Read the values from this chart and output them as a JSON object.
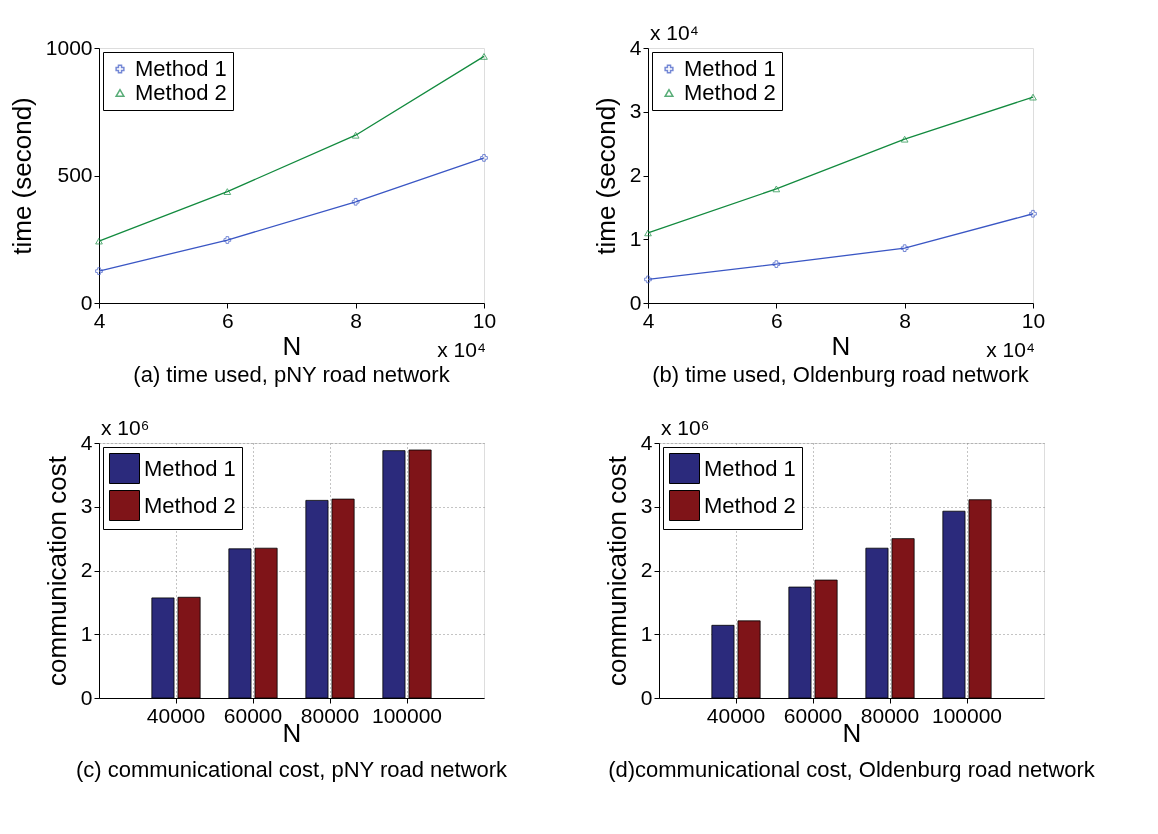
{
  "chart_data": [
    {
      "type": "line",
      "xlabel": "N",
      "ylabel": "time (second)",
      "x": [
        4,
        6,
        8,
        10
      ],
      "xlim": [
        4,
        10
      ],
      "xticks": [
        4,
        6,
        8,
        10
      ],
      "ylim": [
        0,
        1000
      ],
      "yticks": [
        0,
        500,
        1000
      ],
      "legend": "top left",
      "series": [
        {
          "name": "Method 1",
          "color": "#3a56c4",
          "marker": "cross",
          "values": [
            125,
            247,
            397,
            569
          ]
        },
        {
          "name": "Method 2",
          "color": "#128a3e",
          "marker": "triangle",
          "values": [
            243,
            437,
            658,
            967
          ]
        }
      ],
      "annotations": [
        "(a) time used, pNY road network",
        "x 10⁴"
      ]
    },
    {
      "type": "line",
      "xlabel": "N",
      "ylabel": "time (second)",
      "x": [
        4,
        6,
        8,
        10
      ],
      "xlim": [
        4,
        10
      ],
      "xticks": [
        4,
        6,
        8,
        10
      ],
      "ylim": [
        0,
        4
      ],
      "yticks": [
        0,
        1,
        2,
        3,
        4
      ],
      "legend": "top left",
      "series": [
        {
          "name": "Method 1",
          "color": "#3a56c4",
          "marker": "cross",
          "values": [
            0.37,
            0.61,
            0.86,
            1.4
          ]
        },
        {
          "name": "Method 2",
          "color": "#128a3e",
          "marker": "triangle",
          "values": [
            1.1,
            1.79,
            2.57,
            3.23
          ]
        }
      ],
      "annotations": [
        "(b) time used, Oldenburg road network",
        "x 10⁴",
        "x 10⁴"
      ]
    },
    {
      "type": "bar",
      "xlabel": "N",
      "ylabel": "communication cost",
      "categories": [
        "40000",
        "60000",
        "80000",
        "100000"
      ],
      "ylim": [
        0,
        4
      ],
      "yticks": [
        0,
        1,
        2,
        3,
        4
      ],
      "legend": "top left",
      "grid": true,
      "series": [
        {
          "name": "Method 1",
          "color": "#2b2a7c",
          "values": [
            1.57,
            2.34,
            3.1,
            3.88
          ]
        },
        {
          "name": "Method 2",
          "color": "#7f1418",
          "values": [
            1.58,
            2.35,
            3.12,
            3.89
          ]
        }
      ],
      "annotations": [
        "(c) communicational cost, pNY road network",
        "x 10⁶"
      ]
    },
    {
      "type": "bar",
      "xlabel": "N",
      "ylabel": "communication cost",
      "categories": [
        "40000",
        "60000",
        "80000",
        "100000"
      ],
      "ylim": [
        0,
        4
      ],
      "yticks": [
        0,
        1,
        2,
        3,
        4
      ],
      "legend": "top left",
      "grid": true,
      "series": [
        {
          "name": "Method 1",
          "color": "#2b2a7c",
          "values": [
            1.14,
            1.74,
            2.35,
            2.93
          ]
        },
        {
          "name": "Method 2",
          "color": "#7f1418",
          "values": [
            1.21,
            1.85,
            2.5,
            3.11
          ]
        }
      ],
      "annotations": [
        "(d)communicational cost, Oldenburg road network",
        "x 10⁶"
      ]
    }
  ]
}
